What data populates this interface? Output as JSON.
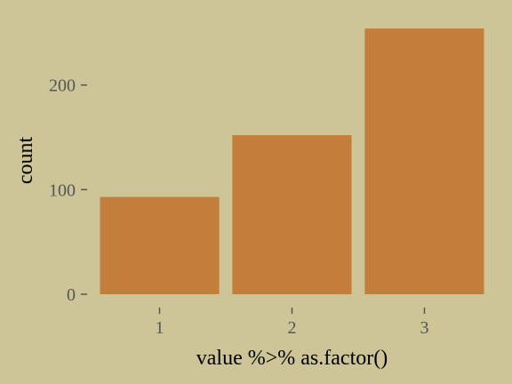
{
  "chart_data": {
    "type": "bar",
    "categories": [
      "1",
      "2",
      "3"
    ],
    "values": [
      93,
      152,
      254
    ],
    "title": "",
    "xlabel": "value %>% as.factor()",
    "ylabel": "count",
    "ylim": [
      0,
      266
    ],
    "yticks": [
      0,
      100,
      200
    ],
    "grid": false,
    "legend": "none"
  },
  "colors": {
    "background": "#cdc597",
    "bar": "#c27e3a",
    "tick": "#555555",
    "text": "#000000"
  }
}
